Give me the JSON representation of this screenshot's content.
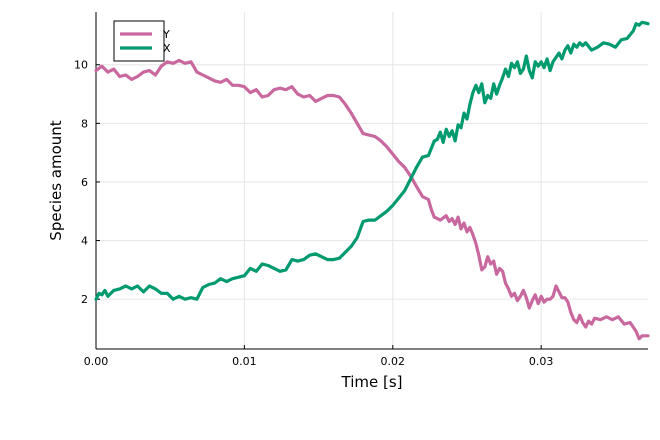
{
  "chart_data": {
    "type": "line",
    "title": "",
    "xlabel": "Time [s]",
    "ylabel": "Species amount",
    "xlim": [
      0.0,
      0.0372
    ],
    "ylim": [
      0.3,
      11.8
    ],
    "x_ticks": [
      {
        "value": 0.0,
        "label": "0.00"
      },
      {
        "value": 0.01,
        "label": "0.01"
      },
      {
        "value": 0.02,
        "label": "0.02"
      },
      {
        "value": 0.03,
        "label": "0.03"
      }
    ],
    "y_ticks": [
      {
        "value": 2,
        "label": "2"
      },
      {
        "value": 4,
        "label": "4"
      },
      {
        "value": 6,
        "label": "6"
      },
      {
        "value": 8,
        "label": "8"
      },
      {
        "value": 10,
        "label": "10"
      }
    ],
    "grid": true,
    "legend_position": "top-left",
    "series": [
      {
        "name": "Y",
        "color": "#c8689e",
        "points": [
          [
            0.0,
            9.8
          ],
          [
            0.0004,
            9.95
          ],
          [
            0.0008,
            9.75
          ],
          [
            0.0012,
            9.85
          ],
          [
            0.0016,
            9.6
          ],
          [
            0.002,
            9.65
          ],
          [
            0.0024,
            9.5
          ],
          [
            0.0028,
            9.6
          ],
          [
            0.0032,
            9.75
          ],
          [
            0.0036,
            9.8
          ],
          [
            0.004,
            9.65
          ],
          [
            0.0044,
            9.95
          ],
          [
            0.0048,
            10.1
          ],
          [
            0.0052,
            10.05
          ],
          [
            0.0056,
            10.15
          ],
          [
            0.006,
            10.05
          ],
          [
            0.0064,
            10.1
          ],
          [
            0.0068,
            9.75
          ],
          [
            0.0072,
            9.65
          ],
          [
            0.0076,
            9.55
          ],
          [
            0.008,
            9.45
          ],
          [
            0.0084,
            9.4
          ],
          [
            0.0088,
            9.5
          ],
          [
            0.0092,
            9.3
          ],
          [
            0.0096,
            9.3
          ],
          [
            0.01,
            9.25
          ],
          [
            0.0104,
            9.05
          ],
          [
            0.0108,
            9.15
          ],
          [
            0.0112,
            8.9
          ],
          [
            0.0116,
            8.95
          ],
          [
            0.012,
            9.15
          ],
          [
            0.0124,
            9.2
          ],
          [
            0.0128,
            9.15
          ],
          [
            0.0132,
            9.25
          ],
          [
            0.0136,
            9.0
          ],
          [
            0.014,
            8.9
          ],
          [
            0.0144,
            8.95
          ],
          [
            0.0148,
            8.75
          ],
          [
            0.0152,
            8.85
          ],
          [
            0.0156,
            8.95
          ],
          [
            0.016,
            8.95
          ],
          [
            0.0164,
            8.9
          ],
          [
            0.0168,
            8.65
          ],
          [
            0.0172,
            8.35
          ],
          [
            0.0176,
            8.0
          ],
          [
            0.018,
            7.65
          ],
          [
            0.0184,
            7.6
          ],
          [
            0.0188,
            7.55
          ],
          [
            0.0192,
            7.4
          ],
          [
            0.0196,
            7.2
          ],
          [
            0.02,
            6.95
          ],
          [
            0.0204,
            6.7
          ],
          [
            0.0208,
            6.5
          ],
          [
            0.0212,
            6.2
          ],
          [
            0.0216,
            5.85
          ],
          [
            0.022,
            5.5
          ],
          [
            0.0224,
            5.4
          ],
          [
            0.0226,
            5.05
          ],
          [
            0.0228,
            4.8
          ],
          [
            0.0232,
            4.7
          ],
          [
            0.0236,
            4.85
          ],
          [
            0.0238,
            4.65
          ],
          [
            0.024,
            4.75
          ],
          [
            0.0242,
            4.55
          ],
          [
            0.0244,
            4.8
          ],
          [
            0.0246,
            4.4
          ],
          [
            0.0248,
            4.6
          ],
          [
            0.025,
            4.3
          ],
          [
            0.0252,
            4.45
          ],
          [
            0.0254,
            4.2
          ],
          [
            0.0256,
            3.9
          ],
          [
            0.0258,
            3.5
          ],
          [
            0.026,
            3.0
          ],
          [
            0.0262,
            3.1
          ],
          [
            0.0264,
            3.45
          ],
          [
            0.0266,
            3.2
          ],
          [
            0.0268,
            3.3
          ],
          [
            0.027,
            2.85
          ],
          [
            0.0272,
            3.05
          ],
          [
            0.0274,
            2.95
          ],
          [
            0.0276,
            2.55
          ],
          [
            0.0278,
            2.35
          ],
          [
            0.028,
            2.1
          ],
          [
            0.0282,
            2.2
          ],
          [
            0.0284,
            1.95
          ],
          [
            0.0286,
            2.1
          ],
          [
            0.0288,
            2.3
          ],
          [
            0.029,
            2.05
          ],
          [
            0.0292,
            1.7
          ],
          [
            0.0294,
            1.95
          ],
          [
            0.0296,
            2.15
          ],
          [
            0.0298,
            1.85
          ],
          [
            0.03,
            2.1
          ],
          [
            0.0302,
            1.9
          ],
          [
            0.0304,
            2.0
          ],
          [
            0.0306,
            2.0
          ],
          [
            0.0308,
            2.1
          ],
          [
            0.031,
            2.45
          ],
          [
            0.0312,
            2.25
          ],
          [
            0.0314,
            2.05
          ],
          [
            0.0316,
            2.05
          ],
          [
            0.0318,
            1.9
          ],
          [
            0.032,
            1.55
          ],
          [
            0.0322,
            1.3
          ],
          [
            0.0324,
            1.2
          ],
          [
            0.0326,
            1.45
          ],
          [
            0.0328,
            1.2
          ],
          [
            0.033,
            1.05
          ],
          [
            0.0332,
            1.25
          ],
          [
            0.0334,
            1.15
          ],
          [
            0.0336,
            1.35
          ],
          [
            0.034,
            1.3
          ],
          [
            0.0344,
            1.4
          ],
          [
            0.0348,
            1.3
          ],
          [
            0.0352,
            1.4
          ],
          [
            0.0356,
            1.15
          ],
          [
            0.036,
            1.2
          ],
          [
            0.0364,
            0.9
          ],
          [
            0.0366,
            0.65
          ],
          [
            0.0368,
            0.75
          ],
          [
            0.0372,
            0.75
          ]
        ]
      },
      {
        "name": "X",
        "color": "#009a6f",
        "points": [
          [
            0.0,
            2.0
          ],
          [
            0.0002,
            2.2
          ],
          [
            0.0004,
            2.15
          ],
          [
            0.0006,
            2.3
          ],
          [
            0.0008,
            2.1
          ],
          [
            0.0012,
            2.3
          ],
          [
            0.0016,
            2.35
          ],
          [
            0.002,
            2.45
          ],
          [
            0.0024,
            2.35
          ],
          [
            0.0028,
            2.45
          ],
          [
            0.0032,
            2.25
          ],
          [
            0.0036,
            2.45
          ],
          [
            0.004,
            2.35
          ],
          [
            0.0044,
            2.2
          ],
          [
            0.0048,
            2.2
          ],
          [
            0.0052,
            2.0
          ],
          [
            0.0056,
            2.1
          ],
          [
            0.006,
            2.0
          ],
          [
            0.0064,
            2.05
          ],
          [
            0.0068,
            2.0
          ],
          [
            0.0072,
            2.4
          ],
          [
            0.0076,
            2.5
          ],
          [
            0.008,
            2.55
          ],
          [
            0.0084,
            2.7
          ],
          [
            0.0088,
            2.6
          ],
          [
            0.0092,
            2.7
          ],
          [
            0.0096,
            2.75
          ],
          [
            0.01,
            2.8
          ],
          [
            0.0104,
            3.05
          ],
          [
            0.0108,
            2.95
          ],
          [
            0.0112,
            3.2
          ],
          [
            0.0116,
            3.15
          ],
          [
            0.012,
            3.05
          ],
          [
            0.0124,
            2.95
          ],
          [
            0.0128,
            3.0
          ],
          [
            0.0132,
            3.35
          ],
          [
            0.0136,
            3.3
          ],
          [
            0.014,
            3.35
          ],
          [
            0.0144,
            3.5
          ],
          [
            0.0148,
            3.55
          ],
          [
            0.0152,
            3.45
          ],
          [
            0.0156,
            3.35
          ],
          [
            0.016,
            3.35
          ],
          [
            0.0164,
            3.4
          ],
          [
            0.0168,
            3.6
          ],
          [
            0.0172,
            3.8
          ],
          [
            0.0176,
            4.1
          ],
          [
            0.018,
            4.65
          ],
          [
            0.0184,
            4.7
          ],
          [
            0.0188,
            4.7
          ],
          [
            0.0192,
            4.85
          ],
          [
            0.0196,
            5.0
          ],
          [
            0.02,
            5.2
          ],
          [
            0.0204,
            5.45
          ],
          [
            0.0208,
            5.7
          ],
          [
            0.0212,
            6.1
          ],
          [
            0.0216,
            6.5
          ],
          [
            0.022,
            6.85
          ],
          [
            0.0224,
            6.9
          ],
          [
            0.0228,
            7.4
          ],
          [
            0.023,
            7.45
          ],
          [
            0.0232,
            7.7
          ],
          [
            0.0234,
            7.35
          ],
          [
            0.0236,
            7.8
          ],
          [
            0.0238,
            7.55
          ],
          [
            0.024,
            7.75
          ],
          [
            0.0242,
            7.4
          ],
          [
            0.0244,
            7.95
          ],
          [
            0.0246,
            7.85
          ],
          [
            0.0248,
            8.35
          ],
          [
            0.025,
            8.15
          ],
          [
            0.0252,
            8.65
          ],
          [
            0.0254,
            9.05
          ],
          [
            0.0256,
            9.3
          ],
          [
            0.0258,
            9.05
          ],
          [
            0.026,
            9.35
          ],
          [
            0.0262,
            8.7
          ],
          [
            0.0264,
            8.95
          ],
          [
            0.0266,
            8.85
          ],
          [
            0.0268,
            9.35
          ],
          [
            0.027,
            9.0
          ],
          [
            0.0272,
            9.3
          ],
          [
            0.0274,
            9.55
          ],
          [
            0.0276,
            9.85
          ],
          [
            0.0278,
            9.6
          ],
          [
            0.028,
            10.05
          ],
          [
            0.0282,
            9.9
          ],
          [
            0.0284,
            10.1
          ],
          [
            0.0286,
            9.7
          ],
          [
            0.0288,
            9.85
          ],
          [
            0.029,
            10.3
          ],
          [
            0.0292,
            9.8
          ],
          [
            0.0294,
            9.55
          ],
          [
            0.0296,
            10.1
          ],
          [
            0.0298,
            9.95
          ],
          [
            0.03,
            10.1
          ],
          [
            0.0302,
            9.9
          ],
          [
            0.0304,
            10.2
          ],
          [
            0.0306,
            9.8
          ],
          [
            0.0308,
            10.1
          ],
          [
            0.031,
            10.25
          ],
          [
            0.0312,
            10.4
          ],
          [
            0.0314,
            10.2
          ],
          [
            0.0316,
            10.5
          ],
          [
            0.0318,
            10.65
          ],
          [
            0.032,
            10.4
          ],
          [
            0.0322,
            10.7
          ],
          [
            0.0324,
            10.6
          ],
          [
            0.0326,
            10.75
          ],
          [
            0.0328,
            10.65
          ],
          [
            0.033,
            10.75
          ],
          [
            0.0334,
            10.5
          ],
          [
            0.0338,
            10.6
          ],
          [
            0.0342,
            10.75
          ],
          [
            0.0346,
            10.7
          ],
          [
            0.035,
            10.6
          ],
          [
            0.0354,
            10.85
          ],
          [
            0.0358,
            10.9
          ],
          [
            0.0362,
            11.15
          ],
          [
            0.0364,
            11.4
          ],
          [
            0.0366,
            11.35
          ],
          [
            0.0368,
            11.45
          ],
          [
            0.0372,
            11.4
          ]
        ]
      }
    ]
  }
}
